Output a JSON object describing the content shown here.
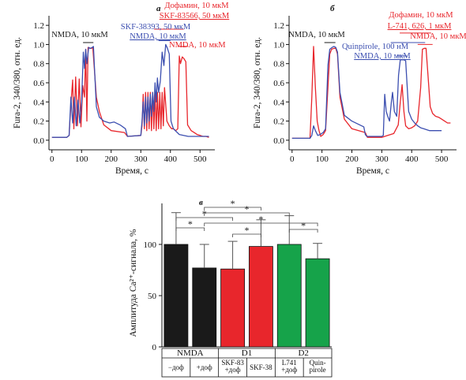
{
  "colors": {
    "red": "#e8262c",
    "blue": "#3c4fb0",
    "black": "#1a1a1a",
    "green": "#16a34a"
  },
  "chart_data": [
    {
      "type": "line",
      "panel": "а",
      "xlabel": "Время, с",
      "ylabel": "Fura-2, 340/380, отн. ед.",
      "xlim": [
        -10,
        550
      ],
      "ylim": [
        -0.1,
        1.3
      ],
      "xticks": [
        0,
        100,
        200,
        300,
        400,
        500
      ],
      "yticks": [
        0,
        0.2,
        0.4,
        0.6,
        0.8,
        1.0,
        1.2
      ],
      "annotations": [
        {
          "text": "Дофамин, 10 мкМ",
          "color": "red"
        },
        {
          "text": "SKF-83566, 50 мкМ",
          "color": "red"
        },
        {
          "text": "SKF-38393, 50 мкМ",
          "color": "blue"
        },
        {
          "text": "NMDA, 10 мкМ",
          "color": "blue"
        },
        {
          "text": "NMDA, 10 мкМ",
          "color": "black"
        },
        {
          "text": "NMDA, 10 мкМ",
          "color": "red"
        }
      ],
      "series": [
        {
          "color": "red",
          "x": [
            0,
            50,
            58,
            64,
            70,
            74,
            80,
            86,
            92,
            98,
            104,
            110,
            114,
            118,
            122,
            128,
            134,
            138,
            150,
            160,
            175,
            200,
            245,
            255,
            300,
            304,
            308,
            312,
            316,
            320,
            324,
            328,
            332,
            336,
            340,
            344,
            348,
            352,
            356,
            360,
            364,
            368,
            372,
            376,
            380,
            388,
            396,
            404,
            410,
            418,
            425,
            430,
            434,
            440,
            446,
            452,
            458,
            470,
            480,
            490,
            500,
            510,
            520,
            530
          ],
          "y": [
            0.03,
            0.03,
            0.05,
            0.38,
            0.63,
            0.12,
            0.66,
            0.15,
            0.64,
            0.14,
            0.57,
            0.45,
            0.95,
            0.2,
            0.97,
            0.96,
            0.96,
            0.97,
            0.45,
            0.3,
            0.16,
            0.1,
            0.08,
            0.04,
            0.05,
            0.15,
            0.48,
            0.12,
            0.5,
            0.1,
            0.5,
            0.12,
            0.5,
            0.1,
            0.5,
            0.12,
            0.5,
            0.1,
            0.5,
            0.12,
            0.5,
            0.12,
            0.5,
            0.15,
            0.55,
            0.2,
            0.15,
            0.12,
            0.12,
            0.1,
            0.12,
            0.88,
            0.8,
            0.87,
            0.85,
            0.82,
            0.16,
            0.1,
            0.08,
            0.06,
            0.05,
            0.04,
            0.04,
            0.03
          ]
        },
        {
          "color": "blue",
          "x": [
            0,
            50,
            58,
            64,
            70,
            76,
            82,
            88,
            94,
            100,
            106,
            110,
            114,
            118,
            124,
            130,
            136,
            140,
            150,
            160,
            175,
            195,
            210,
            230,
            248,
            255,
            300,
            304,
            308,
            312,
            316,
            320,
            324,
            328,
            332,
            336,
            340,
            344,
            348,
            352,
            356,
            360,
            366,
            372,
            378,
            384,
            390,
            396,
            402,
            410,
            430,
            460,
            500,
            530
          ],
          "y": [
            0.03,
            0.03,
            0.05,
            0.45,
            0.18,
            0.45,
            0.15,
            0.42,
            0.18,
            0.4,
            0.92,
            0.75,
            0.95,
            0.8,
            0.97,
            0.96,
            0.97,
            0.98,
            0.35,
            0.24,
            0.2,
            0.18,
            0.19,
            0.16,
            0.12,
            0.04,
            0.05,
            0.2,
            0.4,
            0.15,
            0.45,
            0.18,
            0.45,
            0.2,
            0.48,
            0.25,
            0.5,
            0.3,
            0.6,
            0.4,
            0.65,
            0.5,
            0.62,
            0.92,
            0.78,
            1.0,
            0.96,
            0.9,
            0.2,
            0.12,
            0.06,
            0.04,
            0.04,
            0.04
          ]
        }
      ]
    },
    {
      "type": "line",
      "panel": "б",
      "xlabel": "Время, с",
      "ylabel": "Fura-2, 340/380, отн. ед.",
      "xlim": [
        -10,
        550
      ],
      "ylim": [
        -0.1,
        1.3
      ],
      "xticks": [
        0,
        100,
        200,
        300,
        400,
        500
      ],
      "yticks": [
        0,
        0.2,
        0.4,
        0.6,
        0.8,
        1.0,
        1.2
      ],
      "annotations": [
        {
          "text": "Дофамин, 10 мкМ",
          "color": "red"
        },
        {
          "text": "L-741, 626, 1 мкМ",
          "color": "red"
        },
        {
          "text": "NMDA, 10 мкМ",
          "color": "red"
        },
        {
          "text": "NMDA, 10 мкМ",
          "color": "black"
        },
        {
          "text": "Quinpirole, 100 нМ",
          "color": "blue"
        },
        {
          "text": "NMDA, 10 мкМ",
          "color": "blue"
        }
      ],
      "series": [
        {
          "color": "red",
          "x": [
            0,
            60,
            66,
            72,
            78,
            84,
            90,
            96,
            104,
            112,
            120,
            126,
            132,
            140,
            146,
            152,
            160,
            175,
            200,
            245,
            252,
            300,
            320,
            340,
            355,
            362,
            368,
            374,
            380,
            390,
            400,
            410,
            420,
            430,
            436,
            442,
            448,
            454,
            462,
            470,
            480,
            490,
            500,
            510,
            520,
            530
          ],
          "y": [
            0.02,
            0.02,
            0.45,
            0.98,
            0.55,
            0.2,
            0.1,
            0.04,
            0.06,
            0.1,
            0.55,
            0.9,
            0.95,
            0.96,
            0.96,
            0.9,
            0.45,
            0.22,
            0.12,
            0.08,
            0.03,
            0.03,
            0.05,
            0.07,
            0.16,
            0.4,
            0.58,
            0.3,
            0.15,
            0.12,
            0.13,
            0.15,
            0.2,
            0.55,
            0.95,
            0.96,
            0.96,
            0.7,
            0.35,
            0.28,
            0.25,
            0.24,
            0.22,
            0.2,
            0.18,
            0.18
          ]
        },
        {
          "color": "blue",
          "x": [
            0,
            60,
            66,
            72,
            78,
            86,
            94,
            104,
            112,
            120,
            126,
            134,
            140,
            146,
            152,
            160,
            175,
            200,
            240,
            245,
            250,
            300,
            305,
            310,
            315,
            320,
            326,
            332,
            336,
            342,
            350,
            356,
            362,
            368,
            374,
            380,
            390,
            400,
            410,
            420,
            430,
            440,
            450,
            460,
            470,
            480,
            490,
            500
          ],
          "y": [
            0.02,
            0.02,
            0.05,
            0.15,
            0.1,
            0.05,
            0.06,
            0.08,
            0.12,
            0.78,
            0.95,
            0.97,
            0.98,
            0.97,
            0.92,
            0.5,
            0.26,
            0.2,
            0.14,
            0.06,
            0.04,
            0.04,
            0.05,
            0.48,
            0.3,
            0.25,
            0.2,
            0.4,
            0.5,
            0.3,
            0.25,
            0.68,
            0.84,
            0.84,
            0.84,
            0.83,
            0.3,
            0.22,
            0.18,
            0.15,
            0.13,
            0.12,
            0.11,
            0.1,
            0.1,
            0.1,
            0.1,
            0.1
          ]
        }
      ]
    },
    {
      "type": "bar",
      "panel": "в",
      "ylabel": "Амплитуда Ca²⁺-сигнала, %",
      "ylim": [
        0,
        140
      ],
      "yticks": [
        0,
        50,
        100
      ],
      "categories": [
        "−доф",
        "+доф",
        "SKF-83 +доф",
        "SKF-38",
        "L741 +доф",
        "Quin- pirole"
      ],
      "category_lines": [
        [
          "−доф"
        ],
        [
          "+доф"
        ],
        [
          "SKF-83",
          "+доф"
        ],
        [
          "SKF-38"
        ],
        [
          "L741",
          "+доф"
        ],
        [
          "Quin-",
          "pirole"
        ]
      ],
      "groups": [
        {
          "label": "NMDA",
          "bars": [
            0,
            1
          ]
        },
        {
          "label": "D1",
          "bars": [
            2,
            3
          ]
        },
        {
          "label": "D2",
          "bars": [
            4,
            5
          ]
        }
      ],
      "values": [
        100,
        77,
        76,
        98,
        100,
        86
      ],
      "errors": [
        31,
        23,
        27,
        26,
        28,
        15
      ],
      "bar_colors": [
        "black",
        "black",
        "red",
        "red",
        "green",
        "green"
      ],
      "significance": [
        {
          "from": 0,
          "to": 1,
          "label": "*"
        },
        {
          "from": 2,
          "to": 3,
          "label": "*"
        },
        {
          "from": 4,
          "to": 5,
          "label": "*"
        },
        {
          "from": 0,
          "to": 2,
          "label": "*"
        },
        {
          "from": 1,
          "to": 3,
          "label": "*"
        },
        {
          "from": 1,
          "to": 4,
          "label": "*"
        },
        {
          "from": 1,
          "to": 5,
          "label": "*"
        }
      ]
    }
  ]
}
